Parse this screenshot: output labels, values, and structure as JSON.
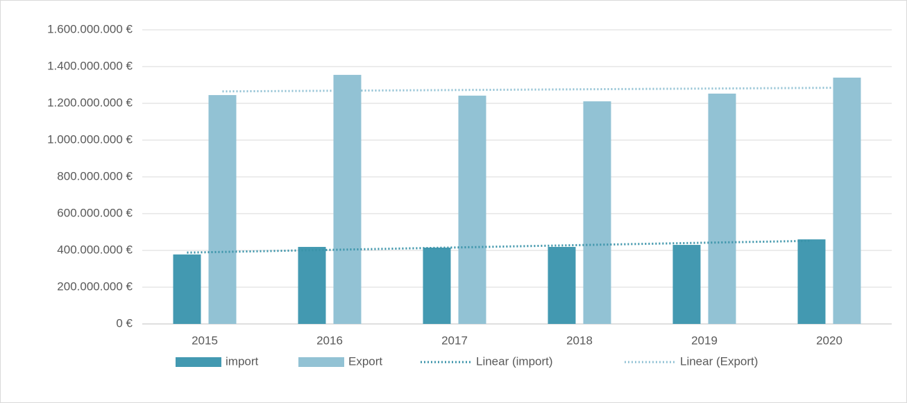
{
  "chart_data": {
    "type": "bar",
    "categories": [
      "2015",
      "2016",
      "2017",
      "2018",
      "2019",
      "2020"
    ],
    "series": [
      {
        "name": "import",
        "color": "#4399b1",
        "values": [
          378000000,
          419000000,
          415000000,
          419000000,
          430000000,
          460000000
        ]
      },
      {
        "name": "Export",
        "color": "#92c2d4",
        "values": [
          1245000000,
          1355000000,
          1242000000,
          1211000000,
          1253000000,
          1340000000
        ]
      },
      {
        "name": "Linear (import)",
        "type": "line",
        "style": "dotted",
        "color": "#3a93a9",
        "values": [
          388000000,
          401000000,
          414000000,
          427000000,
          440000000,
          452000000
        ]
      },
      {
        "name": "Linear (Export)",
        "type": "line",
        "style": "dotted",
        "color": "#92c2d4",
        "values": [
          1265000000,
          1269000000,
          1273000000,
          1277000000,
          1281000000,
          1285000000
        ]
      }
    ],
    "ylim": [
      0,
      1600000000
    ],
    "yticks": [
      {
        "value": 0,
        "label": "0 €"
      },
      {
        "value": 200000000,
        "label": "200.000.000 €"
      },
      {
        "value": 400000000,
        "label": "400.000.000 €"
      },
      {
        "value": 600000000,
        "label": "600.000.000 €"
      },
      {
        "value": 800000000,
        "label": "800.000.000 €"
      },
      {
        "value": 1000000000,
        "label": "1.000.000.000 €"
      },
      {
        "value": 1200000000,
        "label": "1.200.000.000 €"
      },
      {
        "value": 1400000000,
        "label": "1.400.000.000 €"
      },
      {
        "value": 1600000000,
        "label": "1.600.000.000 €"
      }
    ],
    "grid": true,
    "legend": "bottom"
  }
}
